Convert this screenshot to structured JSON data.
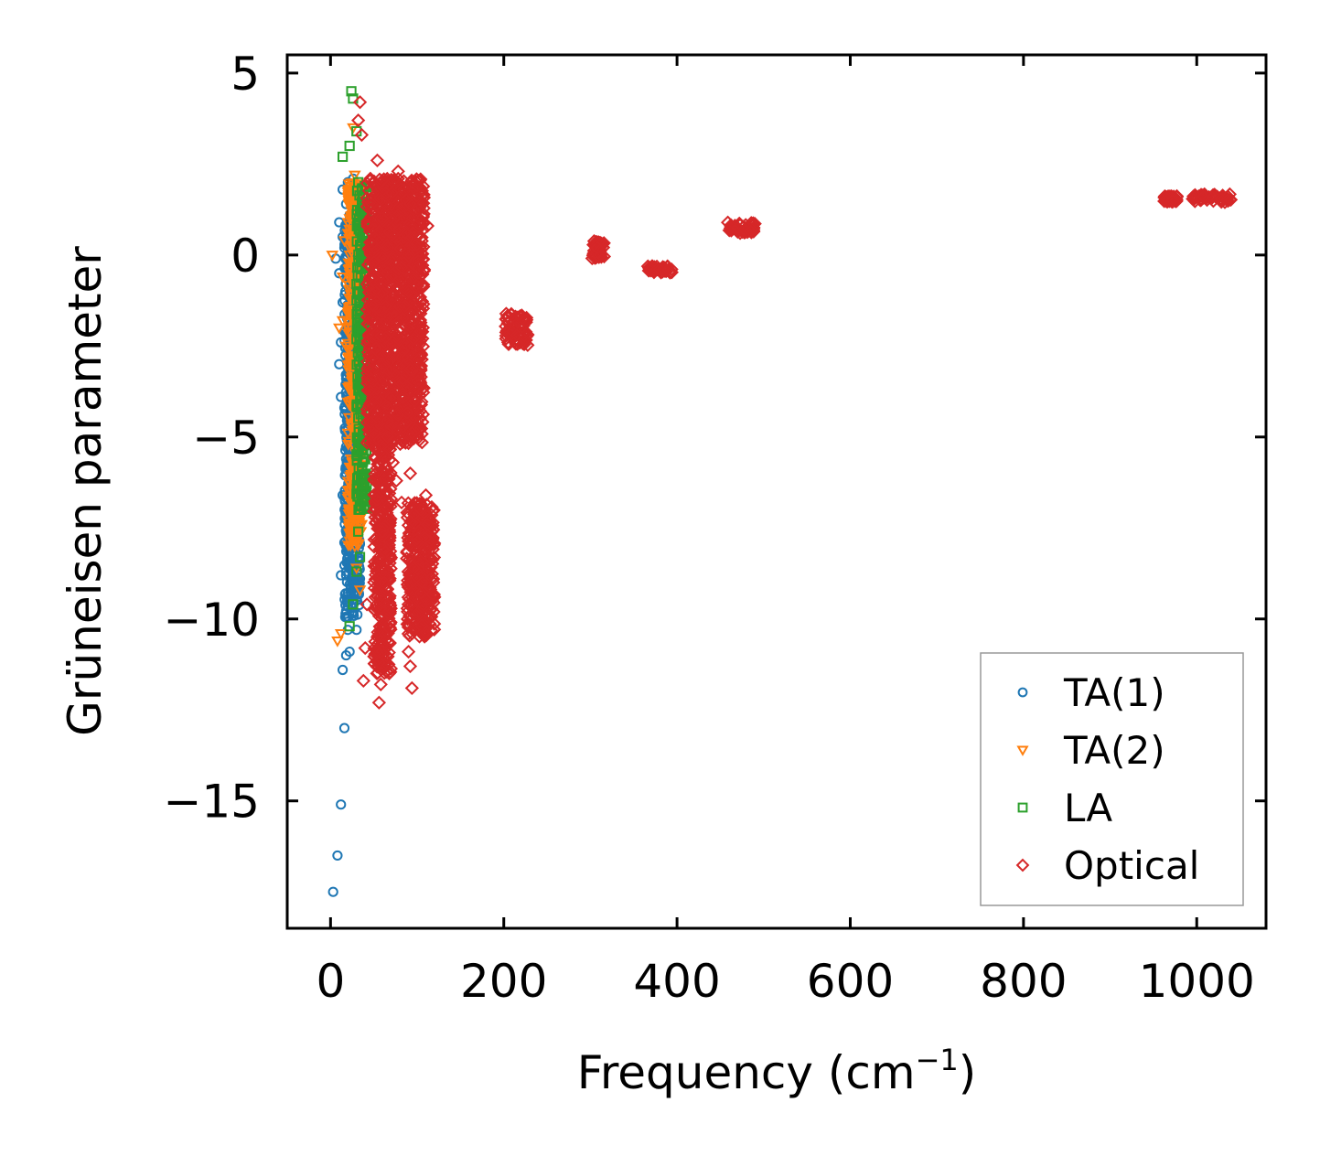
{
  "chart_data": {
    "type": "scatter",
    "title": "",
    "xlabel": "Frequency (cm",
    "xlabel_superscript": "−1",
    "xlabel_suffix": ")",
    "ylabel": "Grüneisen parameter",
    "xlim": [
      -50,
      1080
    ],
    "ylim": [
      -18.5,
      5.5
    ],
    "x_ticks": [
      0,
      200,
      400,
      600,
      800,
      1000
    ],
    "x_tick_labels": [
      "0",
      "200",
      "400",
      "600",
      "800",
      "1000"
    ],
    "y_ticks": [
      5,
      0,
      -5,
      -10,
      -15
    ],
    "y_tick_labels": [
      "5",
      "0",
      "−5",
      "−10",
      "−15"
    ],
    "grid": false,
    "legend_position": "bottom-right",
    "series": [
      {
        "name": "TA(1)",
        "marker": "circle",
        "color": "#1f77b4",
        "points": [
          [
            3,
            -17.5
          ],
          [
            8,
            -16.5
          ],
          [
            12,
            -15.1
          ],
          [
            16,
            -13.0
          ],
          [
            14,
            -11.4
          ],
          [
            18,
            -11.0
          ],
          [
            22,
            -10.9
          ],
          [
            20,
            -10.3
          ],
          [
            26,
            -9.8
          ],
          [
            30,
            -10.3
          ],
          [
            12,
            -8.8
          ],
          [
            18,
            -8.7
          ],
          [
            24,
            -8.5
          ],
          [
            28,
            -8.2
          ],
          [
            16,
            -7.9
          ],
          [
            20,
            -7.5
          ],
          [
            26,
            -7.2
          ],
          [
            14,
            -6.6
          ],
          [
            22,
            -6.4
          ],
          [
            30,
            -6.0
          ],
          [
            18,
            -5.6
          ],
          [
            24,
            -5.4
          ],
          [
            28,
            -5.1
          ],
          [
            20,
            -4.8
          ],
          [
            26,
            -4.5
          ],
          [
            16,
            -4.2
          ],
          [
            30,
            -4.0
          ],
          [
            22,
            -3.7
          ],
          [
            18,
            -3.4
          ],
          [
            28,
            -3.2
          ],
          [
            10,
            -3.0
          ],
          [
            24,
            -2.9
          ],
          [
            20,
            -2.6
          ],
          [
            26,
            -2.3
          ],
          [
            16,
            -2.1
          ],
          [
            30,
            -1.9
          ],
          [
            22,
            -1.6
          ],
          [
            14,
            -1.3
          ],
          [
            28,
            -1.1
          ],
          [
            18,
            -0.8
          ],
          [
            10,
            -0.5
          ],
          [
            24,
            -0.3
          ],
          [
            6,
            -0.1
          ],
          [
            20,
            0.1
          ],
          [
            30,
            0.3
          ],
          [
            14,
            0.5
          ],
          [
            26,
            0.7
          ],
          [
            10,
            0.9
          ],
          [
            22,
            1.1
          ],
          [
            18,
            1.4
          ],
          [
            14,
            1.8
          ],
          [
            20,
            2.0
          ],
          [
            26,
            2.1
          ],
          [
            16,
            0.2
          ],
          [
            12,
            -2.4
          ],
          [
            32,
            -2.7
          ],
          [
            28,
            -5.8
          ],
          [
            34,
            -4.4
          ],
          [
            12,
            -3.9
          ],
          [
            30,
            -7.8
          ],
          [
            20,
            -9.3
          ],
          [
            34,
            -8.9
          ]
        ]
      },
      {
        "name": "TA(2)",
        "marker": "triangle-down",
        "color": "#ff7f0e",
        "points": [
          [
            2,
            0.0
          ],
          [
            8,
            -10.6
          ],
          [
            12,
            -10.4
          ],
          [
            10,
            -2.0
          ],
          [
            14,
            -1.8
          ],
          [
            18,
            -2.5
          ],
          [
            22,
            -3.0
          ],
          [
            26,
            3.5
          ],
          [
            28,
            2.2
          ],
          [
            24,
            1.8
          ],
          [
            30,
            1.5
          ],
          [
            32,
            1.0
          ],
          [
            20,
            0.6
          ],
          [
            34,
            0.2
          ],
          [
            28,
            -0.4
          ],
          [
            36,
            -1.2
          ],
          [
            30,
            -3.5
          ],
          [
            34,
            -4.6
          ],
          [
            26,
            -5.2
          ],
          [
            32,
            -6.1
          ],
          [
            24,
            -6.8
          ],
          [
            36,
            -7.4
          ],
          [
            28,
            -8.0
          ],
          [
            30,
            -8.6
          ],
          [
            34,
            -9.2
          ],
          [
            22,
            -4.1
          ],
          [
            26,
            -1.5
          ],
          [
            20,
            0.9
          ],
          [
            36,
            1.9
          ],
          [
            16,
            0.4
          ],
          [
            14,
            -0.6
          ],
          [
            30,
            -2.8
          ]
        ]
      },
      {
        "name": "LA",
        "marker": "square",
        "color": "#2ca02c",
        "points": [
          [
            24,
            4.5
          ],
          [
            26,
            4.3
          ],
          [
            30,
            3.4
          ],
          [
            22,
            3.0
          ],
          [
            14,
            2.7
          ],
          [
            32,
            2.0
          ],
          [
            36,
            1.8
          ],
          [
            34,
            1.2
          ],
          [
            38,
            0.6
          ],
          [
            36,
            0.0
          ],
          [
            40,
            -0.5
          ],
          [
            38,
            -1.2
          ],
          [
            36,
            -2.0
          ],
          [
            40,
            -2.8
          ],
          [
            38,
            -3.5
          ],
          [
            36,
            -4.2
          ],
          [
            40,
            -4.9
          ],
          [
            38,
            -5.6
          ],
          [
            36,
            -6.3
          ],
          [
            34,
            -7.0
          ],
          [
            32,
            -7.6
          ],
          [
            34,
            -8.3
          ],
          [
            30,
            -8.7
          ],
          [
            26,
            -9.6
          ],
          [
            22,
            -10.2
          ],
          [
            40,
            -1.6
          ],
          [
            38,
            0.9
          ],
          [
            40,
            -3.9
          ]
        ]
      },
      {
        "name": "Optical",
        "marker": "diamond",
        "color": "#d62728",
        "points": [
          [
            34,
            4.2
          ],
          [
            32,
            3.7
          ],
          [
            36,
            3.3
          ],
          [
            54,
            2.6
          ],
          [
            78,
            2.3
          ],
          [
            100,
            1.9
          ],
          [
            46,
            2.1
          ],
          [
            64,
            1.7
          ],
          [
            92,
            1.4
          ],
          [
            60,
            1.0
          ],
          [
            80,
            0.7
          ],
          [
            100,
            0.3
          ],
          [
            50,
            -0.2
          ],
          [
            70,
            -0.6
          ],
          [
            90,
            -1.0
          ],
          [
            56,
            -1.5
          ],
          [
            76,
            -1.9
          ],
          [
            96,
            -2.3
          ],
          [
            48,
            -2.8
          ],
          [
            68,
            -3.2
          ],
          [
            88,
            -3.6
          ],
          [
            58,
            -4.0
          ],
          [
            78,
            -4.4
          ],
          [
            98,
            -4.8
          ],
          [
            52,
            -5.3
          ],
          [
            72,
            -5.7
          ],
          [
            92,
            -6.0
          ],
          [
            62,
            -6.4
          ],
          [
            82,
            -6.8
          ],
          [
            110,
            -6.6
          ],
          [
            104,
            -7.0
          ],
          [
            112,
            -7.4
          ],
          [
            100,
            -7.8
          ],
          [
            108,
            -8.2
          ],
          [
            96,
            -8.6
          ],
          [
            106,
            -9.0
          ],
          [
            94,
            -9.4
          ],
          [
            102,
            -9.8
          ],
          [
            96,
            -10.3
          ],
          [
            60,
            -7.6
          ],
          [
            56,
            -8.3
          ],
          [
            62,
            -9.0
          ],
          [
            58,
            -9.7
          ],
          [
            54,
            -10.5
          ],
          [
            56,
            -11.2
          ],
          [
            58,
            -11.8
          ],
          [
            56,
            -12.3
          ],
          [
            38,
            -11.7
          ],
          [
            40,
            -10.8
          ],
          [
            42,
            -9.6
          ],
          [
            92,
            -11.3
          ],
          [
            94,
            -11.9
          ],
          [
            90,
            -10.9
          ],
          [
            66,
            0.2
          ],
          [
            86,
            -1.4
          ],
          [
            74,
            -2.6
          ],
          [
            84,
            -3.9
          ],
          [
            66,
            -5.0
          ],
          [
            76,
            -6.2
          ],
          [
            44,
            -0.9
          ],
          [
            46,
            -4.6
          ],
          [
            104,
            -2.1
          ],
          [
            108,
            -0.4
          ],
          [
            112,
            0.8
          ],
          [
            205,
            -2.4
          ],
          [
            210,
            -2.1
          ],
          [
            214,
            -1.9
          ],
          [
            220,
            -1.7
          ],
          [
            225,
            -1.8
          ],
          [
            215,
            -2.2
          ],
          [
            305,
            0.3
          ],
          [
            312,
            0.0
          ],
          [
            308,
            0.2
          ],
          [
            370,
            -0.4
          ],
          [
            380,
            -0.4
          ],
          [
            390,
            -0.4
          ],
          [
            462,
            0.8
          ],
          [
            470,
            0.75
          ],
          [
            478,
            0.7
          ],
          [
            485,
            0.65
          ],
          [
            965,
            1.55
          ],
          [
            972,
            1.5
          ],
          [
            998,
            1.65
          ],
          [
            1008,
            1.6
          ],
          [
            1018,
            1.58
          ],
          [
            1028,
            1.55
          ],
          [
            1035,
            1.5
          ]
        ]
      }
    ],
    "dense_regions": [
      {
        "series": "Optical",
        "x_range": [
          42,
          108
        ],
        "y_range": [
          -5.2,
          2.1
        ]
      },
      {
        "series": "Optical",
        "x_range": [
          50,
          70
        ],
        "y_range": [
          -11.5,
          -4.5
        ]
      },
      {
        "series": "Optical",
        "x_range": [
          88,
          120
        ],
        "y_range": [
          -10.5,
          -6.8
        ]
      },
      {
        "series": "LA",
        "x_range": [
          30,
          42
        ],
        "y_range": [
          -7.0,
          1.9
        ]
      },
      {
        "series": "TA(2)",
        "x_range": [
          20,
          36
        ],
        "y_range": [
          -8.0,
          2.0
        ]
      },
      {
        "series": "TA(1)",
        "x_range": [
          16,
          34
        ],
        "y_range": [
          -10.0,
          1.0
        ]
      },
      {
        "series": "Optical",
        "x_range": [
          200,
          228
        ],
        "y_range": [
          -2.5,
          -1.6
        ]
      },
      {
        "series": "Optical",
        "x_range": [
          302,
          316
        ],
        "y_range": [
          -0.1,
          0.4
        ]
      },
      {
        "series": "Optical",
        "x_range": [
          366,
          394
        ],
        "y_range": [
          -0.5,
          -0.3
        ]
      },
      {
        "series": "Optical",
        "x_range": [
          458,
          490
        ],
        "y_range": [
          0.6,
          0.9
        ]
      },
      {
        "series": "Optical",
        "x_range": [
          962,
          978
        ],
        "y_range": [
          1.45,
          1.62
        ]
      },
      {
        "series": "Optical",
        "x_range": [
          995,
          1040
        ],
        "y_range": [
          1.45,
          1.68
        ]
      }
    ]
  }
}
